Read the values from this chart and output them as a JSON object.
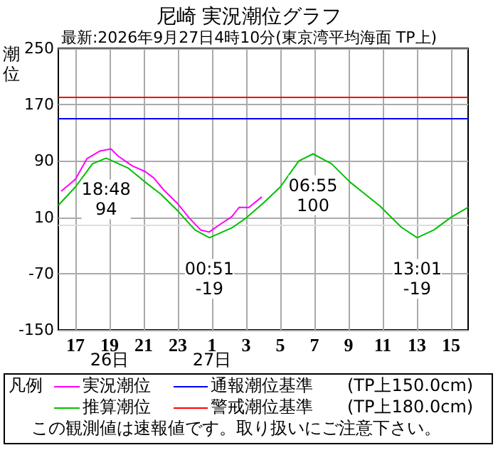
{
  "chart_data": {
    "type": "line",
    "title": "尼崎 実況潮位グラフ",
    "subtitle": "最新:2026年9月27日4時10分(東京湾平均海面 TP上)",
    "ylabel": "潮位",
    "legend_title": "凡例",
    "legend": "bottom",
    "grid": true,
    "marker": "none",
    "line_style": "solid",
    "xlim": [
      "2026-09-26T16:00",
      "2026-09-27T16:00"
    ],
    "ylim": [
      -150,
      250
    ],
    "xticks": [
      {
        "value": "2026-09-26T17:00",
        "label": "17"
      },
      {
        "value": "2026-09-26T19:00",
        "label": "19"
      },
      {
        "value": "2026-09-26T21:00",
        "label": "21"
      },
      {
        "value": "2026-09-26T23:00",
        "label": "23"
      },
      {
        "value": "2026-09-27T01:00",
        "label": "1"
      },
      {
        "value": "2026-09-27T03:00",
        "label": "3"
      },
      {
        "value": "2026-09-27T05:00",
        "label": "5"
      },
      {
        "value": "2026-09-27T07:00",
        "label": "7"
      },
      {
        "value": "2026-09-27T09:00",
        "label": "9"
      },
      {
        "value": "2026-09-27T11:00",
        "label": "11"
      },
      {
        "value": "2026-09-27T13:00",
        "label": "13"
      },
      {
        "value": "2026-09-27T15:00",
        "label": "15"
      }
    ],
    "yticks": [
      -150,
      -70,
      10,
      90,
      170,
      250
    ],
    "series": [
      {
        "name": "実況潮位",
        "color": "#ff00ff",
        "x": [
          "2026-09-26T16:10",
          "2026-09-26T17:00",
          "2026-09-26T17:40",
          "2026-09-26T18:25",
          "2026-09-26T19:05",
          "2026-09-26T19:30",
          "2026-09-26T20:20",
          "2026-09-26T21:05",
          "2026-09-26T21:35",
          "2026-09-26T22:10",
          "2026-09-26T23:00",
          "2026-09-26T23:40",
          "2026-09-27T00:20",
          "2026-09-27T00:50",
          "2026-09-27T01:25",
          "2026-09-27T02:10",
          "2026-09-27T02:35",
          "2026-09-27T03:10",
          "2026-09-27T03:55"
        ],
        "values": [
          47,
          64,
          93,
          104,
          107,
          97,
          83,
          75,
          66,
          49,
          29,
          9,
          -8,
          -11,
          -1,
          11,
          24,
          24,
          39
        ]
      },
      {
        "name": "推算潮位",
        "color": "#00c000",
        "x": [
          "2026-09-26T16:00",
          "2026-09-26T17:00",
          "2026-09-26T18:00",
          "2026-09-26T18:48",
          "2026-09-26T20:05",
          "2026-09-26T21:05",
          "2026-09-26T22:00",
          "2026-09-26T23:00",
          "2026-09-27T00:00",
          "2026-09-27T00:51",
          "2026-09-27T02:10",
          "2026-09-27T03:00",
          "2026-09-27T04:00",
          "2026-09-27T05:00",
          "2026-09-27T06:05",
          "2026-09-27T06:55",
          "2026-09-27T08:00",
          "2026-09-27T09:05",
          "2026-09-27T10:50",
          "2026-09-27T12:05",
          "2026-09-27T13:01",
          "2026-09-27T14:00",
          "2026-09-27T15:00",
          "2026-09-27T16:00"
        ],
        "values": [
          27,
          53,
          86,
          94,
          80,
          60,
          43,
          19,
          -8,
          -19,
          -5,
          9,
          30,
          53,
          90,
          100,
          86,
          60,
          26,
          -4,
          -19,
          -8,
          10,
          24
        ]
      }
    ],
    "ref_lines": [
      {
        "axis": "y",
        "value": 150,
        "label": "通報潮位基準　　(TP上150.0cm)",
        "color": "#0000ff"
      },
      {
        "axis": "y",
        "value": 180,
        "label": "警戒潮位基準　　(TP上180.0cm)",
        "color": "#ff0000"
      },
      {
        "axis": "y",
        "value": 0,
        "color": "#dddddd"
      }
    ],
    "annotations": [
      {
        "text": "18:48\n94",
        "x": "2026-09-26T18:48",
        "y": 94
      },
      {
        "text": "00:51\n-19",
        "x": "2026-09-27T00:51",
        "y": -19
      },
      {
        "text": "06:55\n100",
        "x": "2026-09-27T06:55",
        "y": 100
      },
      {
        "text": "13:01\n-19",
        "x": "2026-09-27T13:01",
        "y": -19
      },
      "26日",
      "27日",
      "この観測値は速報値です。取り扱いにご注意下さい。"
    ]
  }
}
